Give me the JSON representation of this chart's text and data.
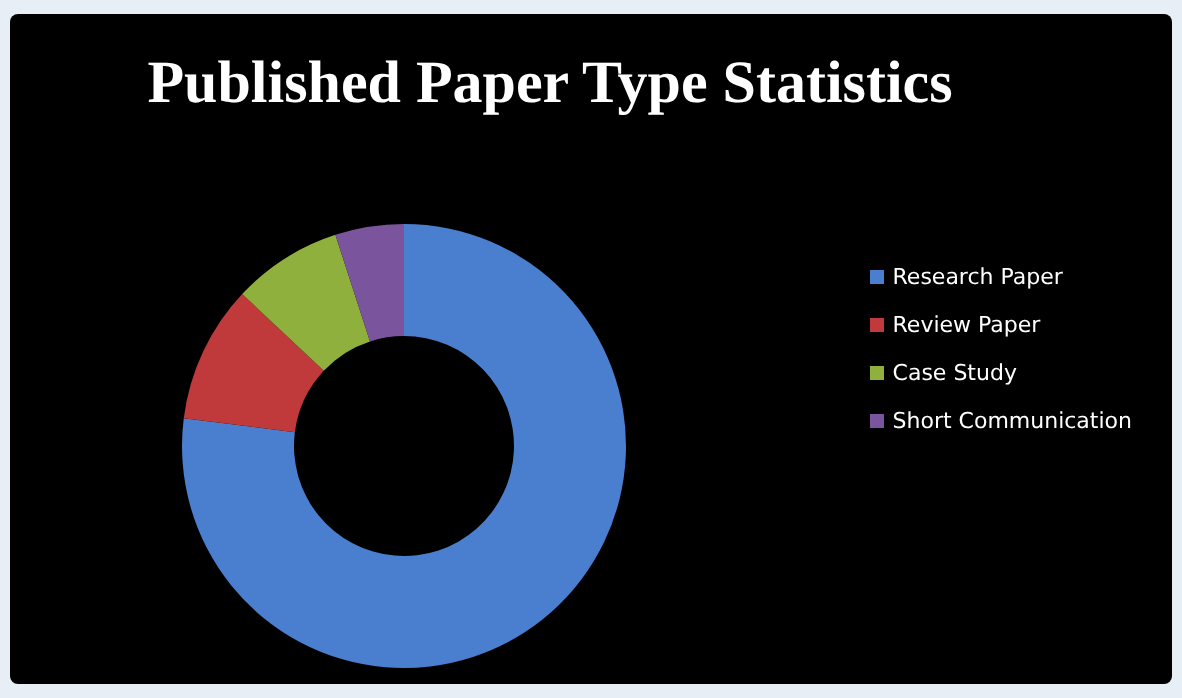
{
  "chart_data": {
    "type": "donut",
    "title": "Published Paper Type Statistics",
    "categories": [
      "Research Paper",
      "Review Paper",
      "Case Study",
      "Short Communication"
    ],
    "values": [
      77,
      10,
      8,
      5
    ],
    "colors": [
      "#4a7fd0",
      "#c0393b",
      "#8fb03c",
      "#7a559e"
    ],
    "legend": "right"
  }
}
